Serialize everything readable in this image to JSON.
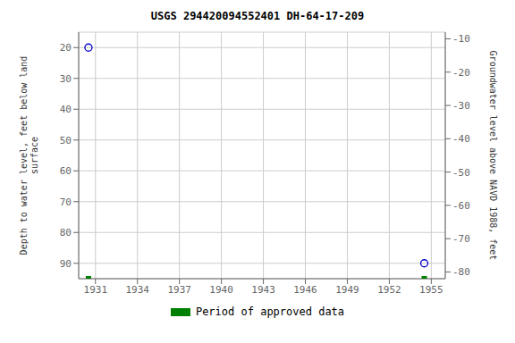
{
  "chart_data": {
    "type": "scatter",
    "title": "USGS 294420094552401 DH-64-17-209",
    "x": [
      1930.5,
      1954.5
    ],
    "series": [
      {
        "color": "#0000cc",
        "marker": "circle",
        "values": [
          20,
          90
        ]
      },
      {
        "name": "Period of approved data",
        "color": "#008000",
        "marker": "square",
        "values": [
          95,
          95
        ]
      }
    ],
    "xlim": [
      1929.8,
      1956.0
    ],
    "xticks": [
      1931,
      1934,
      1937,
      1940,
      1943,
      1946,
      1949,
      1952,
      1955
    ],
    "ylim": [
      95,
      15
    ],
    "yticks": [
      20,
      30,
      40,
      50,
      60,
      70,
      80,
      90
    ],
    "y2lim": [
      -82,
      -8
    ],
    "y2ticks": [
      -10,
      -20,
      -30,
      -40,
      -50,
      -60,
      -70,
      -80
    ],
    "ylabel": "Depth to water level, feet below land\nsurface",
    "y2label": "Groundwater level above NAVD 1988, feet",
    "grid": true,
    "legend": "bottom"
  }
}
